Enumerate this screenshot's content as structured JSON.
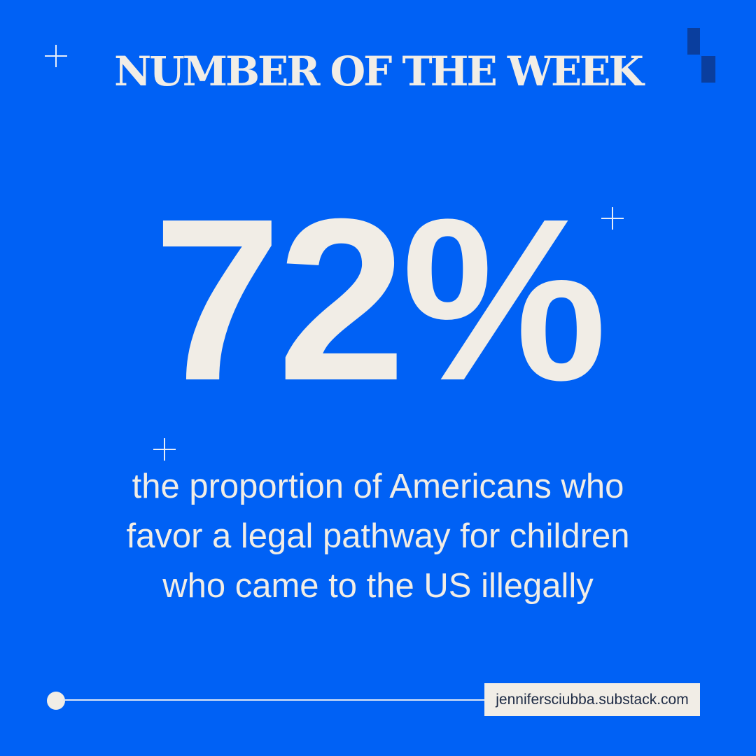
{
  "headline": "NUMBER OF THE WEEK",
  "stat": {
    "value": "72%"
  },
  "description": "the proportion of Americans who favor a legal pathway for children who came to the US illegally",
  "source": {
    "url": "jennifersciubba.substack.com"
  },
  "colors": {
    "background": "#0061F5",
    "text": "#F1EDE6",
    "brand_mark": "#0A3E9E",
    "source_text": "#1D2A44"
  },
  "icons": {
    "plus": "plus-icon",
    "brand": "brand-mark-icon",
    "timeline_dot": "circle-dot-icon"
  }
}
